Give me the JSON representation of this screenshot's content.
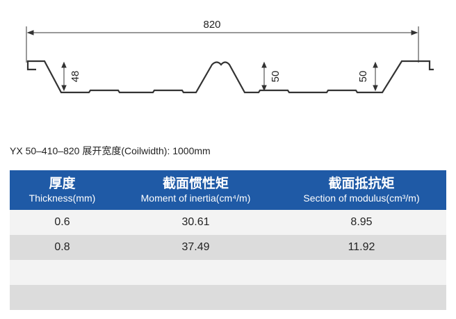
{
  "diagram": {
    "width_label": "820",
    "height_labels": [
      "48",
      "50",
      "50"
    ]
  },
  "caption": "YX 50–410–820  展开宽度(Coilwidth): 1000mm",
  "table": {
    "headers": [
      {
        "zh": "厚度",
        "en": "Thickness(mm)"
      },
      {
        "zh": "截面惯性矩",
        "en": "Moment of inertia(cm⁴/m)"
      },
      {
        "zh": "截面抵抗矩",
        "en": "Section of modulus(cm³/m)"
      }
    ],
    "rows": [
      [
        "0.6",
        "30.61",
        "8.95"
      ],
      [
        "0.8",
        "37.49",
        "11.92"
      ]
    ]
  }
}
